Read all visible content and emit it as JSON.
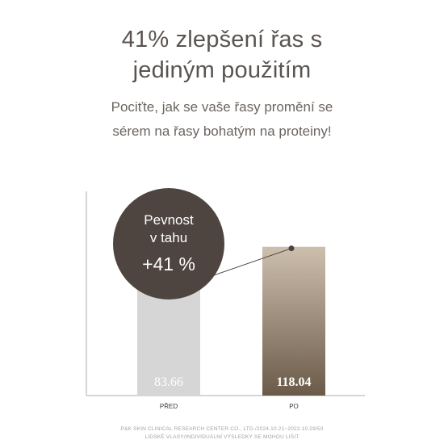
{
  "header": {
    "title_line1": "41% zlepšení řas s",
    "title_line2": "jediným použitím",
    "subtitle_line1": "Pociťte, jak se vaše řasy promění se",
    "subtitle_line2": "sérem na řasy bohatým na proteiny!"
  },
  "chart_data": {
    "type": "bar",
    "categories": [
      "PŘED",
      "PO"
    ],
    "values": [
      83.66,
      118.04
    ],
    "value_labels": [
      "83.66",
      "118.04"
    ],
    "ylim": [
      0,
      130
    ],
    "grid": false,
    "bar_colors": [
      "#d6d6d6",
      "#6b5a48"
    ],
    "bar_top_color_po": "#cdbfae",
    "line_color": "#4a4140",
    "badge": {
      "line1": "Pevnost",
      "line2": "v tahu",
      "line3": "+41 %",
      "color": "#4f4540"
    }
  },
  "footer": {
    "line1": "P&K SKIN CLINICAL RESEARCH CENTER CO., LTD./2024.10.21~2022.10.29/50",
    "line2": "LIDSKÉ VLASY/INDIVIDUÁLNÍ VÝSLEDKY SE MOHOU LIŠIT"
  }
}
